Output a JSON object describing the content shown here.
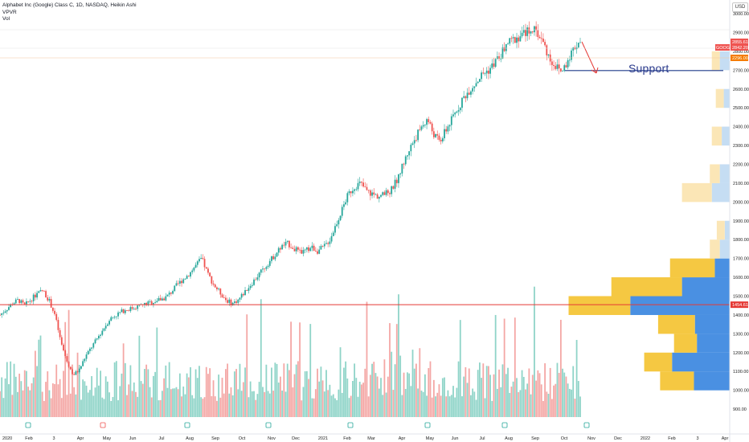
{
  "legend": {
    "title": "Alphabet Inc (Google) Class C, 1D, NASDAQ, Heikin Ashi",
    "indicator": "VPVR",
    "volume": "Vol"
  },
  "currency": "USD",
  "annotation": {
    "support_label": "Support"
  },
  "colors": {
    "up": "#26a69a",
    "down": "#ef5350",
    "vol_up": "#8fd4c8",
    "vol_down": "#f4a7a5",
    "vp_blue": "#4a90e2",
    "vp_yellow": "#f5c842",
    "vp_blue_light": "#c5ddf3",
    "vp_yellow_light": "#fbe6b6",
    "red_line": "#e53935",
    "support_line": "#1e3a8a"
  },
  "chart_data": {
    "type": "candlestick",
    "y_ticks": [
      "900.00",
      "1000.00",
      "1100.00",
      "1200.00",
      "1300.00",
      "1400.00",
      "1500.00",
      "1600.00",
      "1700.00",
      "1800.00",
      "1900.00",
      "2000.00",
      "2100.00",
      "2200.00",
      "2300.00",
      "2400.00",
      "2500.00",
      "2600.00",
      "2700.00",
      "2800.00",
      "2900.00",
      "3000.00"
    ],
    "ylim": [
      862,
      3030
    ],
    "x_ticks": [
      "2020",
      "Feb",
      "3",
      "Apr",
      "May",
      "Jun",
      "Jul",
      "Aug",
      "Sep",
      "Oct",
      "Nov",
      "Dec",
      "2021",
      "Feb",
      "Mar",
      "Apr",
      "May",
      "Jun",
      "Jul",
      "Aug",
      "Sep",
      "Oct",
      "Nov",
      "Dec",
      "2022",
      "Feb",
      "3",
      "Apr"
    ],
    "price_close": [
      1400,
      1430,
      1460,
      1480,
      1450,
      1480,
      1510,
      1530,
      1480,
      1400,
      1250,
      1150,
      1080,
      1110,
      1180,
      1230,
      1280,
      1330,
      1380,
      1400,
      1420,
      1430,
      1440,
      1450,
      1460,
      1470,
      1480,
      1490,
      1520,
      1560,
      1590,
      1620,
      1660,
      1700,
      1620,
      1560,
      1520,
      1480,
      1460,
      1480,
      1520,
      1560,
      1600,
      1640,
      1680,
      1720,
      1760,
      1780,
      1760,
      1730,
      1740,
      1760,
      1740,
      1760,
      1800,
      1880,
      1960,
      2040,
      2080,
      2100,
      2060,
      2040,
      2030,
      2040,
      2060,
      2120,
      2200,
      2280,
      2340,
      2400,
      2440,
      2360,
      2320,
      2380,
      2440,
      2500,
      2560,
      2600,
      2640,
      2680,
      2700,
      2740,
      2780,
      2840,
      2860,
      2880,
      2900,
      2920,
      2900,
      2840,
      2760,
      2720,
      2690,
      2760,
      2820,
      2860
    ],
    "volume_profile": [
      {
        "price": 1050,
        "up": 0.34,
        "down": 0.36
      },
      {
        "price": 1150,
        "up": 0.28,
        "down": 0.58
      },
      {
        "price": 1250,
        "up": 0.23,
        "down": 0.33
      },
      {
        "price": 1350,
        "up": 0.37,
        "down": 0.35
      },
      {
        "price": 1450,
        "up": 0.62,
        "down": 1.0
      },
      {
        "price": 1550,
        "up": 0.71,
        "down": 0.48
      },
      {
        "price": 1650,
        "up": 0.45,
        "down": 0.15
      },
      {
        "price": 1750,
        "up": 0.1,
        "down": 0.1
      },
      {
        "price": 1850,
        "up": 0.08,
        "down": 0.05
      },
      {
        "price": 2050,
        "up": 0.3,
        "down": 0.18
      },
      {
        "price": 2150,
        "up": 0.1,
        "down": 0.1
      },
      {
        "price": 2350,
        "up": 0.1,
        "down": 0.08
      },
      {
        "price": 2550,
        "up": 0.08,
        "down": 0.06
      },
      {
        "price": 2750,
        "up": 0.08,
        "down": 0.1
      }
    ],
    "levels": {
      "price_line": 1454.61,
      "support": 2698,
      "price_tags": [
        "2855.61",
        "2842.20",
        "2296.00",
        "1454.61"
      ],
      "ticker": "GOOG"
    },
    "grid": false,
    "legend": "top-left"
  }
}
